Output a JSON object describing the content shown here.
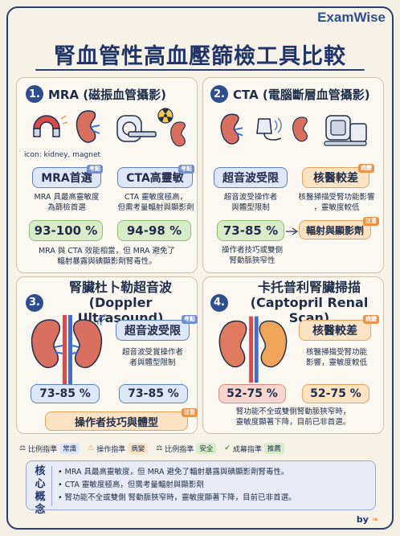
{
  "brand": "ExamWise",
  "title": "腎血管性高血壓篩檢工具比較",
  "sections": {
    "s1": {
      "num": "1.",
      "title": "MRA (磁振血管攝影)",
      "icon_caption": "icon: kidney, magnet",
      "pill_left": {
        "label": "MRA首選",
        "tag": "考點"
      },
      "pill_right": {
        "label": "CTA高靈敏",
        "tag": "考點"
      },
      "text_left": "MRA 具最高靈敏度\n為篩檢首選",
      "text_right": "CTA 靈敏度極高，\n但需考量輻射與顯影劑",
      "value_left": "93-100 %",
      "value_right": "94-98 %",
      "note": "MRA 與 CTA 效能相當，但 MRA 避免了\n輻射暴露與碘顯影劑腎毒性。"
    },
    "s2": {
      "num": "2.",
      "title": "CTA (電腦斷層血管攝影)",
      "pill_left": {
        "label": "超音波受限"
      },
      "pill_right": {
        "label": "核醫較差",
        "tag": "病變"
      },
      "text_left": "超音波受操作者\n與體型限制",
      "text_right": "核醫掃描受腎功能影響\n，靈敏度較低",
      "value_left": "73-85 %",
      "pill_extra": {
        "label": "輻射與顯影劑",
        "tag": "注意"
      },
      "note": "操作者技巧或雙側\n腎動脈狹窄性"
    },
    "s3": {
      "num": "3.",
      "title": "腎臟杜卜勒超音波\n(Doppler Ultrasound)",
      "pill": {
        "label": "超音波受限",
        "tag": "考點"
      },
      "text": "超音波受賞操作者\n者與體型限制",
      "value_left": "73-85 %",
      "value_right": "73-85 %",
      "pill_bottom": {
        "label": "操作者技巧與體型",
        "tag": "注意"
      }
    },
    "s4": {
      "num": "4.",
      "title": "卡托普利腎臟掃描\n(Captopril Renal Scan)",
      "pill": {
        "label": "核醫較差",
        "tag": "病變"
      },
      "text": "核醫掃描受腎功能\n影響，靈敏度較低",
      "value_left": "52-75 %",
      "value_right": "52-75 %",
      "note": "腎功能不全或雙側腎動脈狹窄時，\n靈敏度顯著下降，目前已非首選。"
    }
  },
  "legend": [
    {
      "icon": "scale-icon",
      "label": "比例指準",
      "badge": "常識",
      "badge_color": "#dde7f8"
    },
    {
      "icon": "warning-icon",
      "label": "操作指準",
      "badge": "病變",
      "badge_color": "#fbe3c4"
    },
    {
      "icon": "scale-icon",
      "label": "比例指準",
      "badge": "安全",
      "badge_color": "#d8ecc9"
    },
    {
      "icon": "check-icon",
      "label": "成幕指準",
      "badge": "推薦",
      "badge_color": "#d8ecc9"
    }
  ],
  "core": {
    "label": "核心概念",
    "items": [
      "MRA 具最高靈敏度，但 MRA 避免了輻射暴露與碘顯影劑腎毒性。",
      "CTA 靈敏度極高，但需考量輻射與顯影劑",
      "腎功能不全或雙側 腎動脈狹窄時，靈敏度顯著下降，目前已非首選。"
    ]
  },
  "by": "by",
  "colors": {
    "navy": "#22356b",
    "blue": "#5d7fc0",
    "orange": "#e6a15a",
    "green": "#8cbf6b",
    "red": "#e08b7e"
  }
}
